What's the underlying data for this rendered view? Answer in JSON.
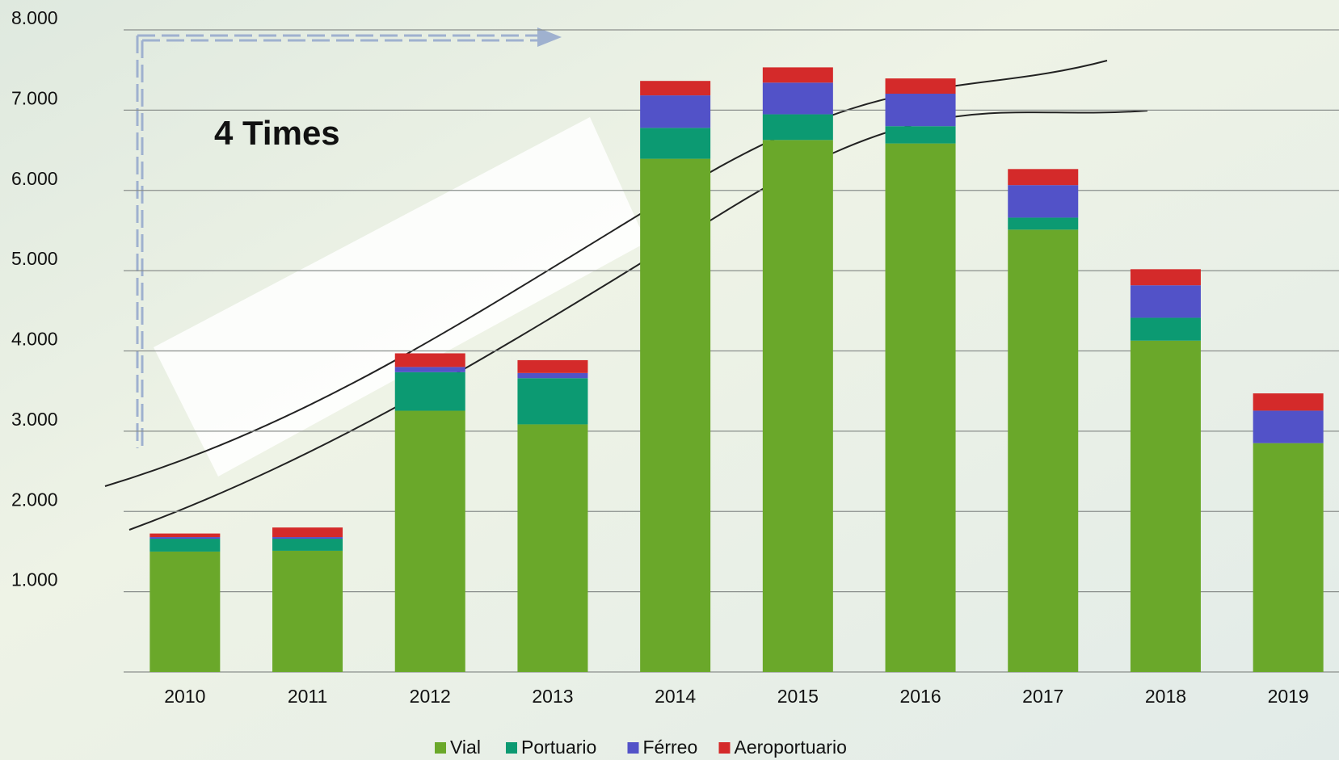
{
  "chart_data": {
    "type": "stacked-bar",
    "annotation": "4 Times",
    "categories": [
      "2010",
      "2011",
      "2012",
      "2013",
      "2014",
      "2015",
      "2016",
      "2017",
      "2018",
      "2019"
    ],
    "series": [
      {
        "name": "Vial",
        "color": "#6aa82a",
        "values": [
          1500,
          1510,
          3255,
          3085,
          6394,
          6628,
          6585,
          5511,
          4128,
          2851
        ]
      },
      {
        "name": "Portuario",
        "color": "#0c9a72",
        "values": [
          160,
          150,
          480,
          575,
          385,
          320,
          215,
          150,
          285,
          0
        ]
      },
      {
        "name": "Férreo",
        "color": "#5252c8",
        "values": [
          20,
          20,
          65,
          65,
          405,
          395,
          405,
          405,
          405,
          405
        ]
      },
      {
        "name": "Aeroportuario",
        "color": "#d42a2a",
        "values": [
          45,
          120,
          170,
          160,
          180,
          190,
          190,
          200,
          200,
          215
        ]
      }
    ],
    "ylim": [
      0,
      8000
    ],
    "yticks": [
      {
        "value": 1000,
        "label": "1.000"
      },
      {
        "value": 2000,
        "label": "2.000"
      },
      {
        "value": 3000,
        "label": "3.000"
      },
      {
        "value": 4000,
        "label": "4.000"
      },
      {
        "value": 5000,
        "label": "5.000"
      },
      {
        "value": 6000,
        "label": "6.000"
      },
      {
        "value": 7000,
        "label": "7.000"
      },
      {
        "value": 8000,
        "label": "8.000"
      }
    ],
    "grid": true,
    "legend": "bottom"
  }
}
